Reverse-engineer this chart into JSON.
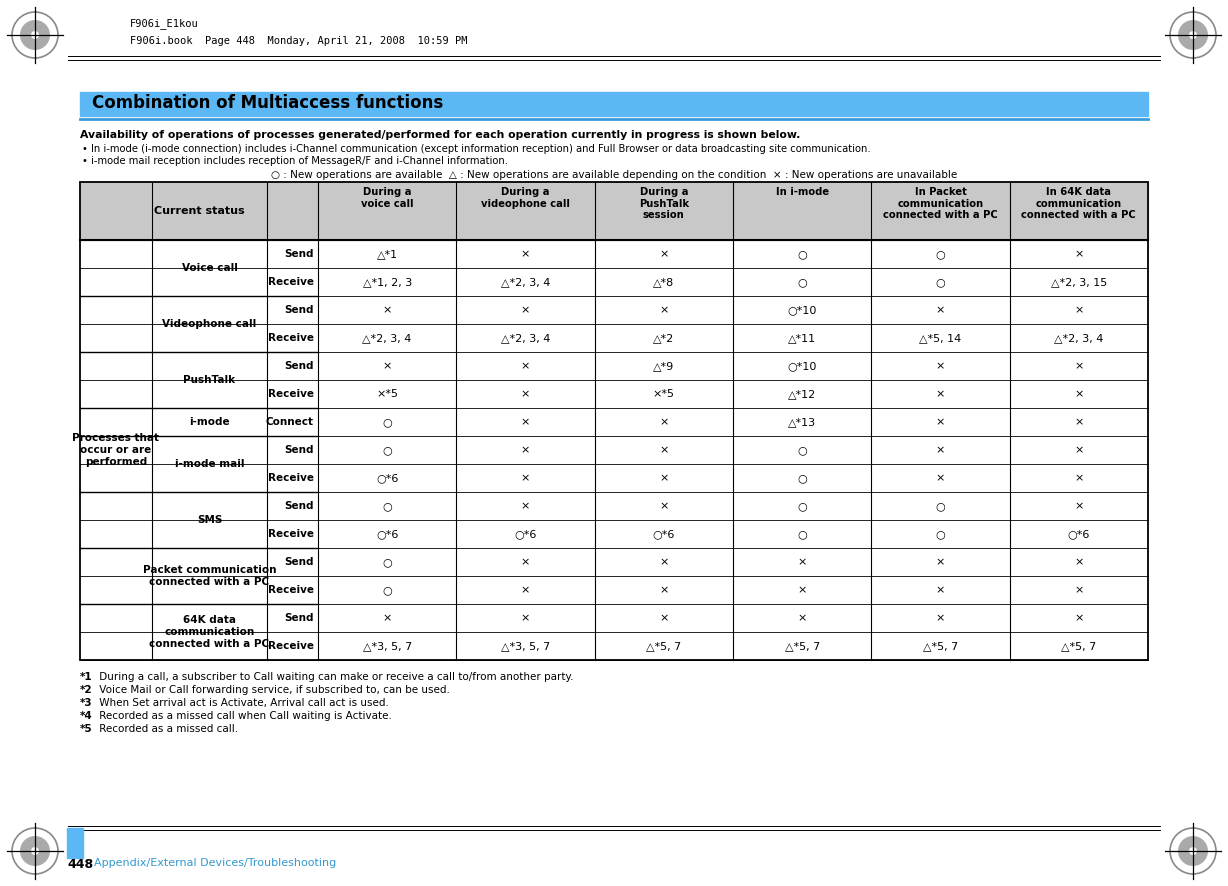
{
  "page_header_text": "F906i_E1kou",
  "page_subheader_text": "F906i.book  Page 448  Monday, April 21, 2008  10:59 PM",
  "title_bar_color": "#5BB8F5",
  "title_text": "Combination of Multiaccess functions",
  "title_underline_color": "#3A9AD9",
  "intro_bold": "Availability of operations of processes generated/performed for each operation currently in progress is shown below.",
  "bullets": [
    "In i-mode (i-mode connection) includes i-Channel communication (except information reception) and Full Browser or data broadcasting site communication.",
    "i-mode mail reception includes reception of MessageR/F and i-Channel information."
  ],
  "legend": "○ : New operations are available  △ : New operations are available depending on the condition  × : New operations are unavailable",
  "header_bg": "#C8C8C8",
  "rows": [
    {
      "group": "Voice call",
      "action": "Send",
      "cells": [
        "△*1",
        "×",
        "×",
        "○",
        "○",
        "×"
      ]
    },
    {
      "group": "Voice call",
      "action": "Receive",
      "cells": [
        "△*1, 2, 3",
        "△*2, 3, 4",
        "△*8",
        "○",
        "○",
        "△*2, 3, 15"
      ]
    },
    {
      "group": "Videophone call",
      "action": "Send",
      "cells": [
        "×",
        "×",
        "×",
        "○*10",
        "×",
        "×"
      ]
    },
    {
      "group": "Videophone call",
      "action": "Receive",
      "cells": [
        "△*2, 3, 4",
        "△*2, 3, 4",
        "△*2",
        "△*11",
        "△*5, 14",
        "△*2, 3, 4"
      ]
    },
    {
      "group": "PushTalk",
      "action": "Send",
      "cells": [
        "×",
        "×",
        "△*9",
        "○*10",
        "×",
        "×"
      ]
    },
    {
      "group": "PushTalk",
      "action": "Receive",
      "cells": [
        "×*5",
        "×",
        "×*5",
        "△*12",
        "×",
        "×"
      ]
    },
    {
      "group": "i-mode",
      "action": "Connect",
      "cells": [
        "○",
        "×",
        "×",
        "△*13",
        "×",
        "×"
      ]
    },
    {
      "group": "i-mode mail",
      "action": "Send",
      "cells": [
        "○",
        "×",
        "×",
        "○",
        "×",
        "×"
      ]
    },
    {
      "group": "i-mode mail",
      "action": "Receive",
      "cells": [
        "○*6",
        "×",
        "×",
        "○",
        "×",
        "×"
      ]
    },
    {
      "group": "SMS",
      "action": "Send",
      "cells": [
        "○",
        "×",
        "×",
        "○",
        "○",
        "×"
      ]
    },
    {
      "group": "SMS",
      "action": "Receive",
      "cells": [
        "○*6",
        "○*6",
        "○*6",
        "○",
        "○",
        "○*6"
      ]
    },
    {
      "group": "Packet communication\nconnected with a PC",
      "action": "Send",
      "cells": [
        "○",
        "×",
        "×",
        "×",
        "×",
        "×"
      ]
    },
    {
      "group": "Packet communication\nconnected with a PC",
      "action": "Receive",
      "cells": [
        "○",
        "×",
        "×",
        "×",
        "×",
        "×"
      ]
    },
    {
      "group": "64K data\ncommunication\nconnected with a PC",
      "action": "Send",
      "cells": [
        "×",
        "×",
        "×",
        "×",
        "×",
        "×"
      ]
    },
    {
      "group": "64K data\ncommunication\nconnected with a PC",
      "action": "Receive",
      "cells": [
        "△*3, 5, 7",
        "△*3, 5, 7",
        "△*5, 7",
        "△*5, 7",
        "△*5, 7",
        "△*5, 7"
      ]
    }
  ],
  "footnotes": [
    [
      "*1",
      " During a call, a subscriber to Call waiting can make or receive a call to/from another party."
    ],
    [
      "*2",
      " Voice Mail or Call forwarding service, if subscribed to, can be used."
    ],
    [
      "*3",
      " When Set arrival act is Activate, Arrival call act is used."
    ],
    [
      "*4",
      " Recorded as a missed call when Call waiting is Activate."
    ],
    [
      "*5",
      " Recorded as a missed call."
    ]
  ],
  "page_number": "448",
  "page_nav": "Appendix/External Devices/Troubleshooting",
  "page_nav_color": "#3399CC",
  "sidebar_color": "#5BB8F5",
  "bg_color": "#FFFFFF"
}
